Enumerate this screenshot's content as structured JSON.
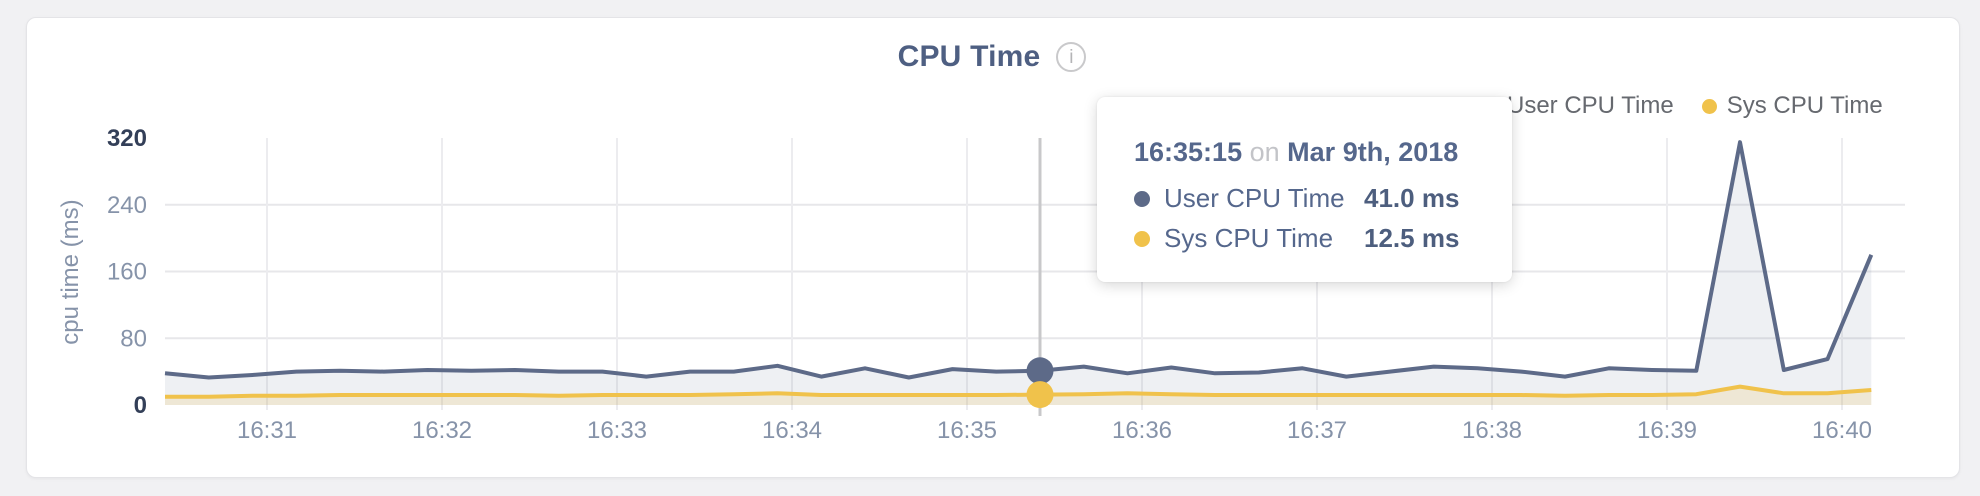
{
  "card": {
    "title": "CPU Time",
    "info_icon": "i"
  },
  "legend": [
    {
      "label": "User CPU Time",
      "color": "#5d6a88"
    },
    {
      "label": "Sys CPU Time",
      "color": "#f0c24b"
    }
  ],
  "tooltip": {
    "time": "16:35:15",
    "connector": "on",
    "date": "Mar 9th, 2018",
    "rows": [
      {
        "label": "User CPU Time",
        "value": "41.0 ms",
        "color": "#5d6a88"
      },
      {
        "label": "Sys CPU Time",
        "value": "12.5 ms",
        "color": "#f0c24b"
      }
    ]
  },
  "chart_data": {
    "type": "line",
    "title": "CPU Time",
    "xlabel": "",
    "ylabel": "cpu time (ms)",
    "ylim": [
      0,
      320
    ],
    "y_ticks": [
      0,
      80,
      160,
      240,
      320
    ],
    "x_ticks": [
      "16:31",
      "16:32",
      "16:33",
      "16:34",
      "16:35",
      "16:36",
      "16:37",
      "16:38",
      "16:39",
      "16:40"
    ],
    "grid": true,
    "legend_position": "top-right",
    "start_time": "16:30:15",
    "interval_seconds": 15,
    "hover_index": 20,
    "hover_time": "16:35:15",
    "hover_date": "Mar 9th, 2018",
    "series": [
      {
        "name": "User CPU Time",
        "color": "#5d6a88",
        "fill": "rgba(93,106,136,0.10)",
        "values": [
          38,
          33,
          36,
          40,
          41,
          40,
          42,
          41,
          42,
          40,
          40,
          34,
          40,
          40,
          47,
          34,
          44,
          33,
          43,
          40,
          41,
          46,
          38,
          45,
          38,
          39,
          44,
          34,
          40,
          46,
          44,
          40,
          34,
          44,
          42,
          41,
          315,
          42,
          55,
          180
        ]
      },
      {
        "name": "Sys CPU Time",
        "color": "#f0c24b",
        "fill": "rgba(240,194,75,0.18)",
        "values": [
          10,
          10,
          11,
          11,
          12,
          12,
          12,
          12,
          12,
          11,
          12,
          12,
          12,
          13,
          14,
          12,
          12,
          12,
          12,
          12,
          12.5,
          13,
          14,
          13,
          12,
          12,
          12,
          12,
          12,
          12,
          12,
          12,
          11,
          12,
          12,
          13,
          22,
          14,
          14,
          18
        ]
      }
    ]
  },
  "colors": {
    "grid_h": "#e7e7ea",
    "grid_v": "#ececef",
    "hover_line": "#c8c8ca",
    "tick_label": "#8693a9",
    "tick_label_dark": "#333f58",
    "axis_title": "#8693a9"
  }
}
